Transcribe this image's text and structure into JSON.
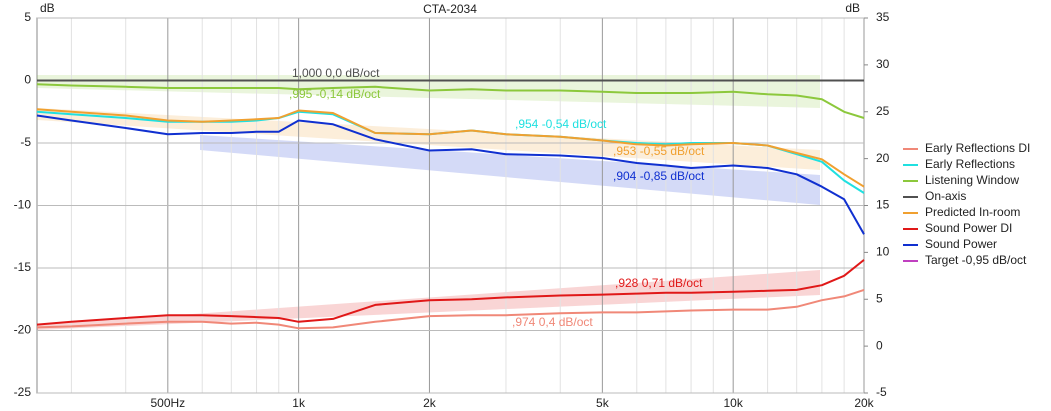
{
  "chart_data": {
    "type": "line",
    "title": "CTA-2034",
    "ylabel": "dB",
    "y2label": "dB",
    "x": [
      250,
      300,
      400,
      500,
      600,
      700,
      800,
      900,
      1000,
      1200,
      1500,
      2000,
      2500,
      3000,
      4000,
      5000,
      6000,
      7000,
      8000,
      10000,
      12000,
      14000,
      16000,
      18000,
      20000
    ],
    "series": [
      {
        "name": "Early Reflections DI",
        "color": "#f08878",
        "axis": "y2",
        "values": [
          2.0,
          2.1,
          2.4,
          2.6,
          2.6,
          2.4,
          2.5,
          2.3,
          1.9,
          2.0,
          2.6,
          3.2,
          3.3,
          3.3,
          3.5,
          3.6,
          3.6,
          3.7,
          3.8,
          3.9,
          3.9,
          4.2,
          4.9,
          5.3,
          6.0
        ]
      },
      {
        "name": "Early Reflections",
        "color": "#20e0e0",
        "values": [
          -2.5,
          -2.7,
          -3.0,
          -3.3,
          -3.3,
          -3.3,
          -3.2,
          -3.0,
          -2.5,
          -2.7,
          -4.2,
          -4.3,
          -4.0,
          -4.3,
          -4.5,
          -4.8,
          -5.0,
          -5.1,
          -5.0,
          -5.0,
          -5.2,
          -5.9,
          -6.5,
          -8.0,
          -9.0
        ]
      },
      {
        "name": "Listening Window",
        "color": "#8cc83c",
        "values": [
          -0.3,
          -0.4,
          -0.5,
          -0.6,
          -0.6,
          -0.6,
          -0.6,
          -0.6,
          -0.7,
          -0.6,
          -0.5,
          -0.8,
          -0.7,
          -0.8,
          -0.8,
          -0.9,
          -1.0,
          -1.0,
          -1.0,
          -0.9,
          -1.1,
          -1.2,
          -1.5,
          -2.5,
          -3.0
        ]
      },
      {
        "name": "On-axis",
        "color": "#505050",
        "values": [
          0,
          0,
          0,
          0,
          0,
          0,
          0,
          0,
          0,
          0,
          0,
          0,
          0,
          0,
          0,
          0,
          0,
          0,
          0,
          0,
          0,
          0,
          0,
          0,
          0
        ]
      },
      {
        "name": "Predicted In-room",
        "color": "#f0a030",
        "values": [
          -2.3,
          -2.5,
          -2.8,
          -3.2,
          -3.3,
          -3.2,
          -3.1,
          -3.0,
          -2.4,
          -2.6,
          -4.2,
          -4.3,
          -4.0,
          -4.3,
          -4.5,
          -4.8,
          -5.1,
          -5.2,
          -5.1,
          -5.0,
          -5.2,
          -5.8,
          -6.3,
          -7.5,
          -8.5
        ]
      },
      {
        "name": "Sound Power DI",
        "color": "#e01818",
        "axis": "y2",
        "values": [
          2.3,
          2.6,
          3.0,
          3.3,
          3.3,
          3.2,
          3.1,
          3.0,
          2.6,
          2.9,
          4.4,
          4.9,
          5.0,
          5.2,
          5.4,
          5.5,
          5.6,
          5.7,
          5.7,
          5.8,
          5.9,
          6.0,
          6.5,
          7.5,
          9.2
        ]
      },
      {
        "name": "Sound Power",
        "color": "#1030d0",
        "values": [
          -2.8,
          -3.2,
          -3.8,
          -4.3,
          -4.2,
          -4.2,
          -4.1,
          -4.1,
          -3.2,
          -3.5,
          -4.7,
          -5.6,
          -5.5,
          -5.9,
          -6.0,
          -6.2,
          -6.6,
          -6.8,
          -7.0,
          -6.8,
          -7.0,
          -7.5,
          -8.5,
          -9.5,
          -12.3
        ]
      },
      {
        "name": "Target -0,95 dB/oct",
        "color": "#c040c0",
        "values": [
          null,
          null,
          null,
          null,
          null,
          null,
          null,
          null,
          null,
          null,
          null,
          null,
          null,
          null,
          null,
          null,
          null,
          null,
          null,
          null,
          null,
          null,
          null,
          null,
          null
        ]
      }
    ],
    "annotations": [
      "1,000  0,0 dB/oct",
      ",995  -0,14 dB/oct",
      ",954  -0,54 dB/oct",
      ",953  -0,55 dB/oct",
      ",904  -0,85 dB/oct",
      ",928  0,71 dB/oct",
      ",974  0,4 dB/oct"
    ],
    "xlim": [
      250,
      20000
    ],
    "log_x": true,
    "xticks": [
      {
        "value": 500,
        "label": "500Hz"
      },
      {
        "value": 1000,
        "label": "1k"
      },
      {
        "value": 2000,
        "label": "2k"
      },
      {
        "value": 5000,
        "label": "5k"
      },
      {
        "value": 10000,
        "label": "10k"
      },
      {
        "value": 20000,
        "label": "20k"
      }
    ],
    "xminor": [
      300,
      400,
      600,
      700,
      800,
      900,
      3000,
      4000,
      6000,
      7000,
      8000,
      9000,
      12000,
      14000,
      16000,
      18000
    ],
    "ylim": [
      -25,
      5
    ],
    "yticks": [
      5,
      0,
      -5,
      -10,
      -15,
      -20,
      -25
    ],
    "y2lim": [
      -5,
      35
    ],
    "y2ticks": [
      35,
      30,
      25,
      20,
      15,
      10,
      5,
      0,
      -5
    ],
    "grid": true,
    "legend": "right"
  }
}
